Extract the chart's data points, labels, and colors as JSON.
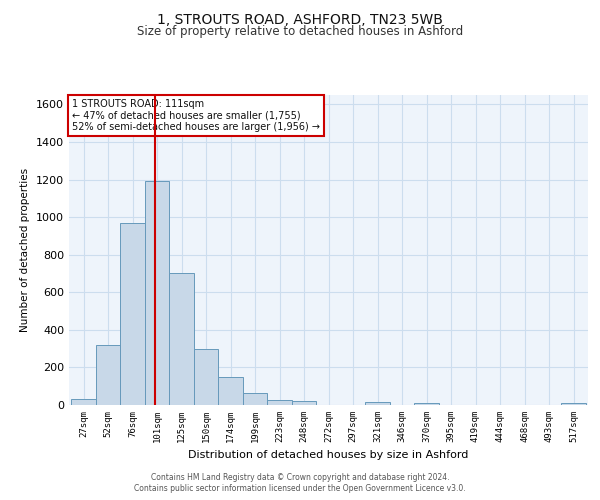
{
  "title_line1": "1, STROUTS ROAD, ASHFORD, TN23 5WB",
  "title_line2": "Size of property relative to detached houses in Ashford",
  "xlabel": "Distribution of detached houses by size in Ashford",
  "ylabel": "Number of detached properties",
  "footer_line1": "Contains HM Land Registry data © Crown copyright and database right 2024.",
  "footer_line2": "Contains public sector information licensed under the Open Government Licence v3.0.",
  "bin_labels": [
    "27sqm",
    "52sqm",
    "76sqm",
    "101sqm",
    "125sqm",
    "150sqm",
    "174sqm",
    "199sqm",
    "223sqm",
    "248sqm",
    "272sqm",
    "297sqm",
    "321sqm",
    "346sqm",
    "370sqm",
    "395sqm",
    "419sqm",
    "444sqm",
    "468sqm",
    "493sqm",
    "517sqm"
  ],
  "bar_values": [
    30,
    320,
    970,
    1190,
    700,
    300,
    150,
    65,
    25,
    20,
    0,
    0,
    15,
    0,
    10,
    0,
    0,
    0,
    0,
    0,
    10
  ],
  "bar_color": "#c8d8e8",
  "bar_edge_color": "#6699bb",
  "grid_color": "#ccddee",
  "background_color": "#eef4fb",
  "annotation_text": "1 STROUTS ROAD: 111sqm\n← 47% of detached houses are smaller (1,755)\n52% of semi-detached houses are larger (1,956) →",
  "vline_color": "#cc0000",
  "vline_x": 111,
  "ylim": [
    0,
    1650
  ],
  "bin_starts": [
    27,
    52,
    76,
    101,
    125,
    150,
    174,
    199,
    223,
    248,
    272,
    297,
    321,
    346,
    370,
    395,
    419,
    444,
    468,
    493,
    517
  ],
  "bin_width": 25
}
